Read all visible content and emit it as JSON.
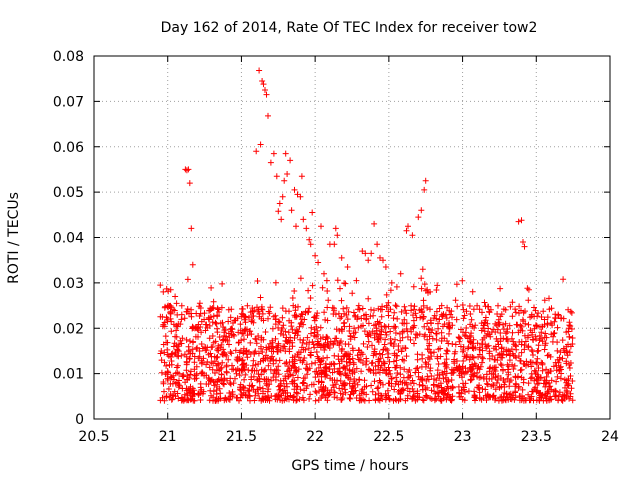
{
  "chart_data": {
    "type": "scatter",
    "title": "Day 162 of 2014, Rate Of TEC Index for receiver tow2",
    "xlabel": "GPS time / hours",
    "ylabel": "ROTI / TECUs",
    "xlim": [
      20.5,
      24
    ],
    "ylim": [
      0,
      0.08
    ],
    "xticks": [
      "20.5",
      "21",
      "21.5",
      "22",
      "22.5",
      "23",
      "23.5",
      "24"
    ],
    "yticks": [
      "0",
      "0.01",
      "0.02",
      "0.03",
      "0.04",
      "0.05",
      "0.06",
      "0.07",
      "0.08"
    ],
    "grid": true,
    "marker": "+",
    "color": "#ff0000",
    "series": [
      {
        "name": "tow2",
        "points": [
          [
            20.95,
            0.0295
          ],
          [
            20.97,
            0.028
          ],
          [
            20.98,
            0.0245
          ],
          [
            21.0,
            0.022
          ],
          [
            21.02,
            0.0285
          ],
          [
            21.05,
            0.027
          ],
          [
            21.12,
            0.055
          ],
          [
            21.13,
            0.0548
          ],
          [
            21.14,
            0.055
          ],
          [
            21.15,
            0.052
          ],
          [
            21.16,
            0.042
          ],
          [
            21.17,
            0.034
          ],
          [
            21.6,
            0.059
          ],
          [
            21.62,
            0.0768
          ],
          [
            21.63,
            0.0605
          ],
          [
            21.64,
            0.0745
          ],
          [
            21.65,
            0.0738
          ],
          [
            21.66,
            0.0725
          ],
          [
            21.67,
            0.0715
          ],
          [
            21.68,
            0.0668
          ],
          [
            21.7,
            0.0565
          ],
          [
            21.72,
            0.0585
          ],
          [
            21.74,
            0.0535
          ],
          [
            21.75,
            0.0458
          ],
          [
            21.76,
            0.0475
          ],
          [
            21.77,
            0.044
          ],
          [
            21.78,
            0.049
          ],
          [
            21.79,
            0.0525
          ],
          [
            21.8,
            0.0585
          ],
          [
            21.81,
            0.054
          ],
          [
            21.83,
            0.057
          ],
          [
            21.84,
            0.046
          ],
          [
            21.86,
            0.0505
          ],
          [
            21.87,
            0.0425
          ],
          [
            21.88,
            0.0495
          ],
          [
            21.9,
            0.049
          ],
          [
            21.91,
            0.0535
          ],
          [
            21.92,
            0.044
          ],
          [
            21.94,
            0.042
          ],
          [
            21.96,
            0.0395
          ],
          [
            21.97,
            0.0385
          ],
          [
            21.98,
            0.0455
          ],
          [
            22.0,
            0.036
          ],
          [
            22.02,
            0.0345
          ],
          [
            22.04,
            0.0425
          ],
          [
            22.06,
            0.032
          ],
          [
            22.08,
            0.0305
          ],
          [
            22.1,
            0.0385
          ],
          [
            22.13,
            0.0385
          ],
          [
            22.14,
            0.042
          ],
          [
            22.15,
            0.0405
          ],
          [
            22.18,
            0.0355
          ],
          [
            22.22,
            0.0335
          ],
          [
            22.28,
            0.0305
          ],
          [
            22.32,
            0.037
          ],
          [
            22.34,
            0.0365
          ],
          [
            22.36,
            0.035
          ],
          [
            22.38,
            0.0365
          ],
          [
            22.4,
            0.043
          ],
          [
            22.42,
            0.0385
          ],
          [
            22.44,
            0.0355
          ],
          [
            22.46,
            0.035
          ],
          [
            22.48,
            0.0335
          ],
          [
            22.52,
            0.03
          ],
          [
            22.58,
            0.032
          ],
          [
            22.62,
            0.0415
          ],
          [
            22.63,
            0.0425
          ],
          [
            22.66,
            0.0405
          ],
          [
            22.7,
            0.0445
          ],
          [
            22.72,
            0.046
          ],
          [
            22.74,
            0.0505
          ],
          [
            22.75,
            0.0525
          ],
          [
            22.73,
            0.033
          ],
          [
            22.76,
            0.0285
          ],
          [
            22.78,
            0.028
          ],
          [
            23.38,
            0.0435
          ],
          [
            23.4,
            0.0438
          ],
          [
            23.41,
            0.039
          ],
          [
            23.42,
            0.038
          ],
          [
            23.44,
            0.0288
          ],
          [
            23.45,
            0.0285
          ]
        ]
      }
    ]
  }
}
